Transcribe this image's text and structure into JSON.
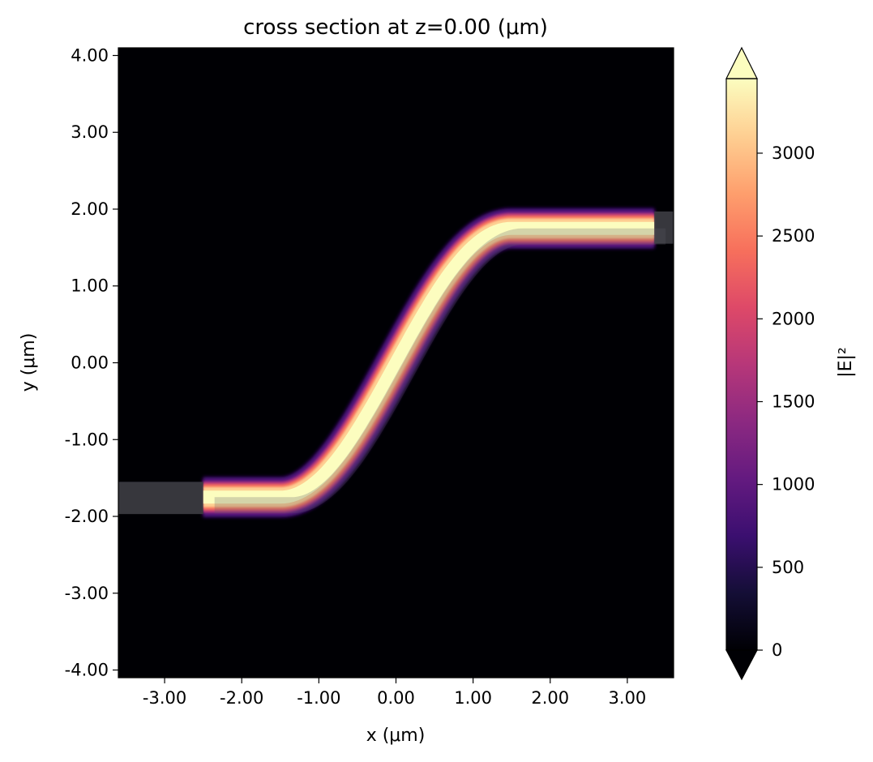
{
  "chart_data": {
    "type": "heatmap",
    "title": "cross section at z=0.00 (μm)",
    "xlabel": "x (μm)",
    "ylabel": "y (μm)",
    "xlim": [
      -3.6,
      3.6
    ],
    "ylim": [
      -4.1,
      4.1
    ],
    "x_ticks": [
      -3,
      -2,
      -1,
      0,
      1,
      2,
      3
    ],
    "x_tick_labels": [
      "-3.00",
      "-2.00",
      "-1.00",
      "0.00",
      "1.00",
      "2.00",
      "3.00"
    ],
    "y_ticks": [
      -4,
      -3,
      -2,
      -1,
      0,
      1,
      2,
      3,
      4
    ],
    "y_tick_labels": [
      "-4.00",
      "-3.00",
      "-2.00",
      "-1.00",
      "0.00",
      "1.00",
      "2.00",
      "3.00",
      "4.00"
    ],
    "colorbar": {
      "label": "|E|²",
      "colormap": "magma",
      "range": [
        0,
        3450
      ],
      "extend": "both",
      "ticks": [
        0,
        500,
        1000,
        1500,
        2000,
        2500,
        3000
      ],
      "tick_labels": [
        "0",
        "500",
        "1000",
        "1500",
        "2000",
        "2500",
        "3000"
      ]
    },
    "field": {
      "description_values": "S-bend waveguide mode intensity",
      "x_start": -2.5,
      "x_end": 3.35,
      "y_start": -1.75,
      "y_end": 1.75,
      "bend_x_start": -1.5,
      "bend_x_end": 1.5,
      "peak": 3450
    },
    "structures": [
      {
        "name": "input-waveguide-stub",
        "x": [
          -3.6,
          -2.5
        ],
        "y": [
          -1.97,
          -1.55
        ]
      },
      {
        "name": "output-waveguide-stub",
        "x": [
          3.35,
          3.6
        ],
        "y": [
          1.55,
          1.97
        ]
      }
    ],
    "colors": {
      "background": "#000004",
      "structure_overlay": "#3a3a40"
    }
  }
}
